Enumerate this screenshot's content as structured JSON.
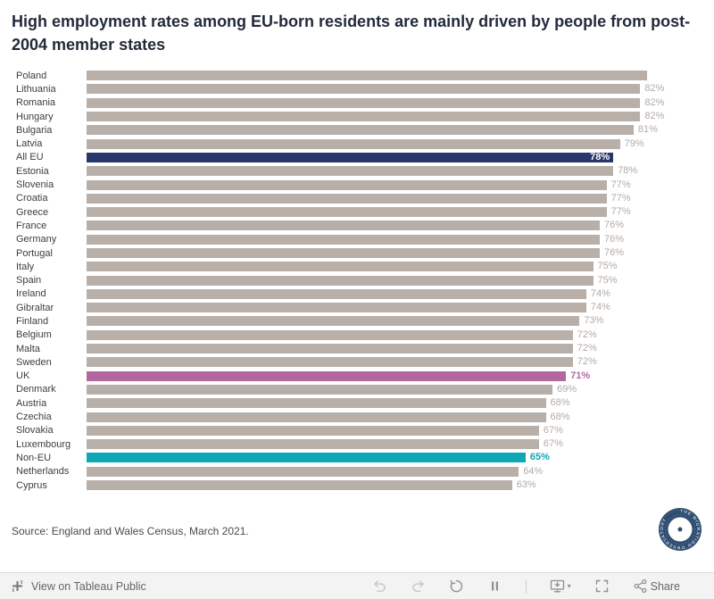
{
  "title": "High employment rates among EU-born residents are mainly driven by people from post-2004 member states",
  "source": "Source: England and Wales Census, March 2021.",
  "logo": {
    "label": "THE MIGRATION OBSERVATORY"
  },
  "toolbar": {
    "view_label": "View on Tableau Public",
    "share_label": "Share",
    "icons": [
      "tableau-logo-icon",
      "undo-icon",
      "redo-icon",
      "revert-icon",
      "pause-icon",
      "download-icon",
      "fullscreen-icon",
      "share-icon"
    ]
  },
  "chart_data": {
    "type": "bar",
    "orientation": "horizontal",
    "title": "High employment rates among EU-born residents are mainly driven by people from post-2004 member states",
    "categories": [
      "Poland",
      "Lithuania",
      "Romania",
      "Hungary",
      "Bulgaria",
      "Latvia",
      "All EU",
      "Estonia",
      "Slovenia",
      "Croatia",
      "Greece",
      "France",
      "Germany",
      "Portugal",
      "Italy",
      "Spain",
      "Ireland",
      "Gibraltar",
      "Finland",
      "Belgium",
      "Malta",
      "Sweden",
      "UK",
      "Denmark",
      "Austria",
      "Czechia",
      "Slovakia",
      "Luxembourg",
      "Non-EU",
      "Netherlands",
      "Cyprus"
    ],
    "values": [
      83,
      82,
      82,
      82,
      81,
      79,
      78,
      78,
      77,
      77,
      77,
      76,
      76,
      76,
      75,
      75,
      74,
      74,
      73,
      72,
      72,
      72,
      71,
      69,
      68,
      68,
      67,
      67,
      65,
      64,
      63
    ],
    "value_labels": [
      "",
      "82%",
      "82%",
      "82%",
      "81%",
      "79%",
      "78%",
      "78%",
      "77%",
      "77%",
      "77%",
      "76%",
      "76%",
      "76%",
      "75%",
      "75%",
      "74%",
      "74%",
      "73%",
      "72%",
      "72%",
      "72%",
      "71%",
      "69%",
      "68%",
      "68%",
      "67%",
      "67%",
      "65%",
      "64%",
      "63%"
    ],
    "xlim": [
      0,
      83
    ],
    "grid": false,
    "legend": "none",
    "bar_colors": {
      "default": "#b8afa9",
      "All EU": "#283769",
      "UK": "#b2679e",
      "Non-EU": "#0fa7b6"
    },
    "label_colors": {
      "default": "#b3aaa4",
      "All EU": "#ffffff",
      "UK": "#b2679e",
      "Non-EU": "#0fa7b6"
    },
    "label_inside": [
      "All EU"
    ]
  }
}
